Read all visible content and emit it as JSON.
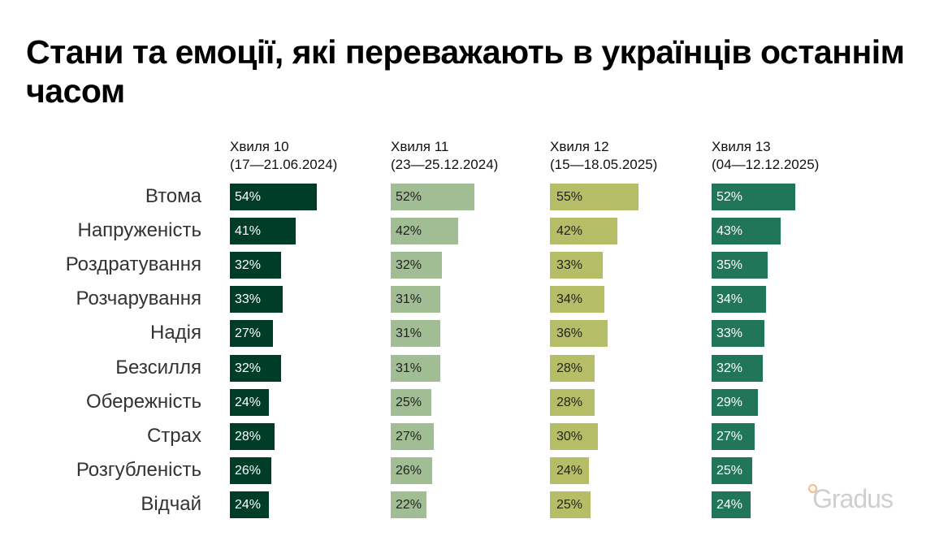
{
  "chart_data": {
    "type": "bar",
    "orientation": "horizontal",
    "title": "Стани та емоції, які переважають в українців останнім часом",
    "categories": [
      "Втома",
      "Напруженість",
      "Роздратування",
      "Розчарування",
      "Надія",
      "Безсилля",
      "Обережність",
      "Страх",
      "Розгубленість",
      "Відчай"
    ],
    "series": [
      {
        "name": "Хвиля 10",
        "period": "(17—21.06.2024)",
        "color": "#003d29",
        "label_color": "#ffffff",
        "values": [
          54,
          41,
          32,
          33,
          27,
          32,
          24,
          28,
          26,
          24
        ]
      },
      {
        "name": "Хвиля 11",
        "period": "(23—25.12.2024)",
        "color": "#a1bd93",
        "label_color": "#222222",
        "values": [
          52,
          42,
          32,
          31,
          31,
          31,
          25,
          27,
          26,
          22
        ]
      },
      {
        "name": "Хвиля 12",
        "period": "(15—18.05.2025)",
        "color": "#b5be66",
        "label_color": "#222222",
        "values": [
          55,
          42,
          33,
          34,
          36,
          28,
          28,
          30,
          24,
          25
        ]
      },
      {
        "name": "Хвиля 13",
        "period": "(04—12.12.2025)",
        "color": "#21765a",
        "label_color": "#ffffff",
        "values": [
          52,
          43,
          35,
          34,
          33,
          32,
          29,
          27,
          25,
          24
        ]
      }
    ],
    "value_suffix": "%",
    "grid": false
  },
  "logo": "Gradus"
}
